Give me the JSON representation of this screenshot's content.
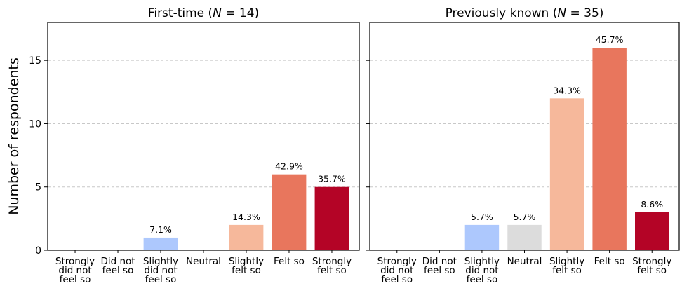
{
  "chart_data": [
    {
      "type": "bar",
      "title": "First-time (N = 14)",
      "ylabel": "Number of respondents",
      "ylim": [
        0,
        18
      ],
      "yticks": [
        0,
        5,
        10,
        15
      ],
      "grid": "horizontal-dashed",
      "categories": [
        "Strongly did not feel so",
        "Did not feel so",
        "Slightly did not feel so",
        "Neutral",
        "Slightly felt so",
        "Felt so",
        "Strongly felt so"
      ],
      "values": [
        0,
        0,
        1,
        0,
        2,
        6,
        5
      ],
      "labels": [
        "",
        "",
        "7.1%",
        "",
        "14.3%",
        "42.9%",
        "35.7%"
      ],
      "colors": [
        "#6a8ef0",
        "#8fb0f8",
        "#adc8fd",
        "#dcdcdc",
        "#f6b89b",
        "#e8765d",
        "#b40426"
      ]
    },
    {
      "type": "bar",
      "title": "Previously known (N = 35)",
      "ylim": [
        0,
        18
      ],
      "yticks": [
        0,
        5,
        10,
        15
      ],
      "grid": "horizontal-dashed",
      "categories": [
        "Strongly did not feel so",
        "Did not feel so",
        "Slightly did not feel so",
        "Neutral",
        "Slightly felt so",
        "Felt so",
        "Strongly felt so"
      ],
      "values": [
        0,
        0,
        2,
        2,
        12,
        16,
        3
      ],
      "labels": [
        "",
        "",
        "5.7%",
        "5.7%",
        "34.3%",
        "45.7%",
        "8.6%"
      ],
      "colors": [
        "#6a8ef0",
        "#8fb0f8",
        "#adc8fd",
        "#dcdcdc",
        "#f6b89b",
        "#e8765d",
        "#b40426"
      ]
    }
  ],
  "category_lines": [
    [
      "Strongly",
      "did not",
      "feel so"
    ],
    [
      "Did not",
      "feel so"
    ],
    [
      "Slightly",
      "did not",
      "feel so"
    ],
    [
      "Neutral"
    ],
    [
      "Slightly",
      "felt so"
    ],
    [
      "Felt so"
    ],
    [
      "Strongly",
      "felt so"
    ]
  ],
  "title_parts": [
    {
      "pre": "First-time (",
      "var": "N",
      "post": " = 14)"
    },
    {
      "pre": "Previously known (",
      "var": "N",
      "post": " = 35)"
    }
  ]
}
